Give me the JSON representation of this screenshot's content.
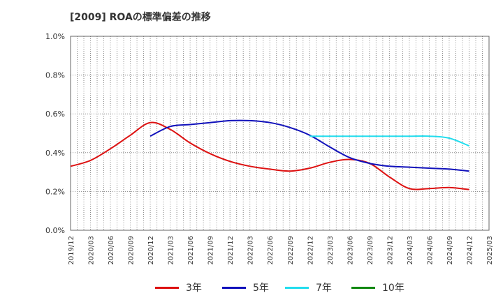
{
  "title": "[2009]  ROAの標準偏差の推移",
  "chart_data": {
    "type": "line",
    "title": "[2009]  ROAの標準偏差の推移",
    "xlabel": "",
    "ylabel": "",
    "ylim": [
      0.0,
      1.0
    ],
    "ytick_labels": [
      "0.0%",
      "0.2%",
      "0.4%",
      "0.6%",
      "0.8%",
      "1.0%"
    ],
    "x": [
      "2019/12",
      "2020/03",
      "2020/06",
      "2020/09",
      "2020/12",
      "2021/03",
      "2021/06",
      "2021/09",
      "2021/12",
      "2022/03",
      "2022/06",
      "2022/09",
      "2022/12",
      "2023/03",
      "2023/06",
      "2023/09",
      "2023/12",
      "2024/03",
      "2024/06",
      "2024/09",
      "2024/12",
      "2025/03"
    ],
    "grid": true,
    "legend_position": "bottom",
    "series": [
      {
        "name": "3年",
        "color": "#dd1111",
        "values": [
          0.33,
          0.36,
          0.42,
          0.49,
          0.555,
          0.52,
          0.45,
          0.395,
          0.355,
          0.33,
          0.315,
          0.305,
          0.32,
          0.35,
          0.365,
          0.345,
          0.275,
          0.215,
          0.215,
          0.22,
          0.21,
          null
        ]
      },
      {
        "name": "5年",
        "color": "#1111bb",
        "values": [
          null,
          null,
          null,
          null,
          0.485,
          0.535,
          0.545,
          0.555,
          0.565,
          0.565,
          0.555,
          0.53,
          0.49,
          0.43,
          0.375,
          0.345,
          0.33,
          0.325,
          0.32,
          0.315,
          0.305,
          null
        ]
      },
      {
        "name": "7年",
        "color": "#22ddee",
        "values": [
          null,
          null,
          null,
          null,
          null,
          null,
          null,
          null,
          null,
          null,
          null,
          null,
          0.485,
          0.485,
          0.485,
          0.485,
          0.485,
          0.485,
          0.485,
          0.475,
          0.435,
          null
        ]
      },
      {
        "name": "10年",
        "color": "#118811",
        "values": [
          null,
          null,
          null,
          null,
          null,
          null,
          null,
          null,
          null,
          null,
          null,
          null,
          null,
          null,
          null,
          null,
          null,
          null,
          null,
          null,
          null,
          null
        ]
      }
    ]
  }
}
